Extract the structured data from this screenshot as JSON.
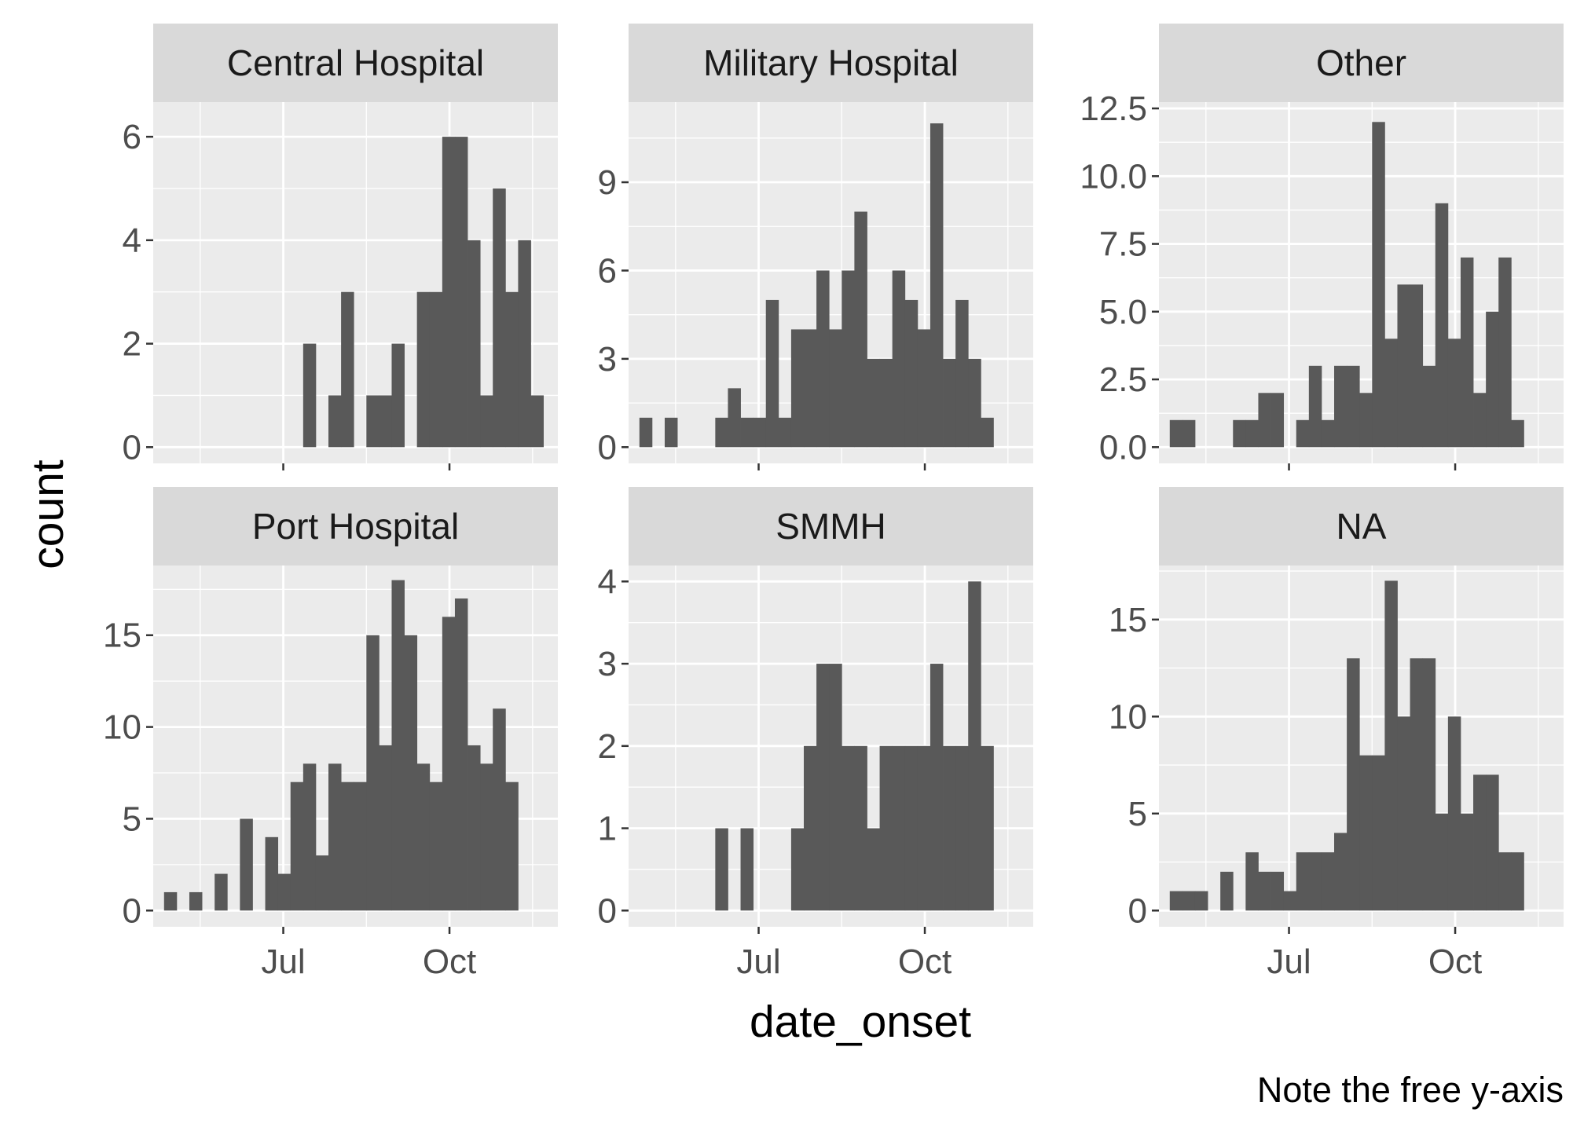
{
  "chart_data": {
    "type": "bar",
    "facet_by": "hospital",
    "xlabel": "date_onset",
    "ylabel": "count",
    "caption": "Note the free y-axis",
    "grid": true,
    "x_axis": {
      "type": "date",
      "range": [
        "2014-04-20",
        "2014-11-30"
      ],
      "major_breaks": [
        "2014-07-01",
        "2014-10-01"
      ],
      "tick_labels": [
        "Jul",
        "Oct"
      ]
    },
    "bin_width_days": 7,
    "bin_starts": [
      "2014-04-26",
      "2014-05-03",
      "2014-05-10",
      "2014-05-17",
      "2014-05-24",
      "2014-05-31",
      "2014-06-07",
      "2014-06-14",
      "2014-06-21",
      "2014-06-28",
      "2014-07-05",
      "2014-07-12",
      "2014-07-19",
      "2014-07-26",
      "2014-08-02",
      "2014-08-09",
      "2014-08-16",
      "2014-08-23",
      "2014-08-30",
      "2014-09-06",
      "2014-09-13",
      "2014-09-20",
      "2014-09-27",
      "2014-10-04",
      "2014-10-11",
      "2014-10-18",
      "2014-10-25",
      "2014-11-01",
      "2014-11-08",
      "2014-11-15",
      "2014-11-22"
    ],
    "panels": [
      {
        "name": "Central Hospital",
        "ylim": [
          0,
          6.6
        ],
        "y_ticks": [
          0,
          2,
          4,
          6
        ],
        "y_tick_labels": [
          "0",
          "2",
          "4",
          "6"
        ],
        "values": [
          0,
          0,
          0,
          0,
          0,
          0,
          0,
          0,
          0,
          0,
          0,
          2,
          0,
          1,
          3,
          0,
          1,
          1,
          2,
          0,
          3,
          3,
          6,
          6,
          4,
          1,
          5,
          3,
          4,
          1,
          0
        ]
      },
      {
        "name": "Military Hospital",
        "ylim": [
          0,
          11.6
        ],
        "y_ticks": [
          0,
          3,
          6,
          9
        ],
        "y_tick_labels": [
          "0",
          "3",
          "6",
          "9"
        ],
        "values": [
          1,
          0,
          1,
          0,
          0,
          0,
          1,
          2,
          1,
          1,
          5,
          1,
          4,
          4,
          6,
          4,
          6,
          8,
          3,
          3,
          6,
          5,
          4,
          11,
          3,
          5,
          3,
          1,
          0,
          0,
          0
        ]
      },
      {
        "name": "Other",
        "ylim": [
          0,
          12.6
        ],
        "y_ticks": [
          0,
          2.5,
          5,
          7.5,
          10,
          12.5
        ],
        "y_tick_labels": [
          "0.0",
          "2.5",
          "5.0",
          "7.5",
          "10.0",
          "12.5"
        ],
        "values": [
          1,
          1,
          0,
          0,
          0,
          1,
          1,
          2,
          2,
          0,
          1,
          3,
          1,
          3,
          3,
          2,
          12,
          4,
          6,
          6,
          3,
          9,
          4,
          7,
          2,
          5,
          7,
          1,
          0,
          0,
          0
        ]
      },
      {
        "name": "Port Hospital",
        "ylim": [
          0,
          18.6
        ],
        "y_ticks": [
          0,
          5,
          10,
          15
        ],
        "y_tick_labels": [
          "0",
          "5",
          "10",
          "15"
        ],
        "values": [
          1,
          0,
          1,
          0,
          2,
          0,
          5,
          0,
          4,
          2,
          7,
          8,
          3,
          8,
          7,
          7,
          15,
          9,
          18,
          15,
          8,
          7,
          16,
          17,
          9,
          8,
          11,
          7,
          0,
          0,
          0
        ]
      },
      {
        "name": "SMMH",
        "ylim": [
          0,
          4.15
        ],
        "y_ticks": [
          0,
          1,
          2,
          3,
          4
        ],
        "y_tick_labels": [
          "0",
          "1",
          "2",
          "3",
          "4"
        ],
        "values": [
          0,
          0,
          0,
          0,
          0,
          0,
          1,
          0,
          1,
          0,
          0,
          0,
          1,
          2,
          3,
          3,
          2,
          2,
          1,
          2,
          2,
          2,
          2,
          3,
          2,
          2,
          4,
          2,
          0,
          0,
          0
        ]
      },
      {
        "name": "NA",
        "ylim": [
          0,
          17.6
        ],
        "y_ticks": [
          0,
          5,
          10,
          15
        ],
        "y_tick_labels": [
          "0",
          "5",
          "10",
          "15"
        ],
        "values": [
          1,
          1,
          1,
          0,
          2,
          0,
          3,
          2,
          2,
          1,
          3,
          3,
          3,
          4,
          13,
          8,
          8,
          17,
          10,
          13,
          13,
          5,
          10,
          5,
          7,
          7,
          3,
          3,
          0,
          0,
          0
        ]
      }
    ]
  }
}
